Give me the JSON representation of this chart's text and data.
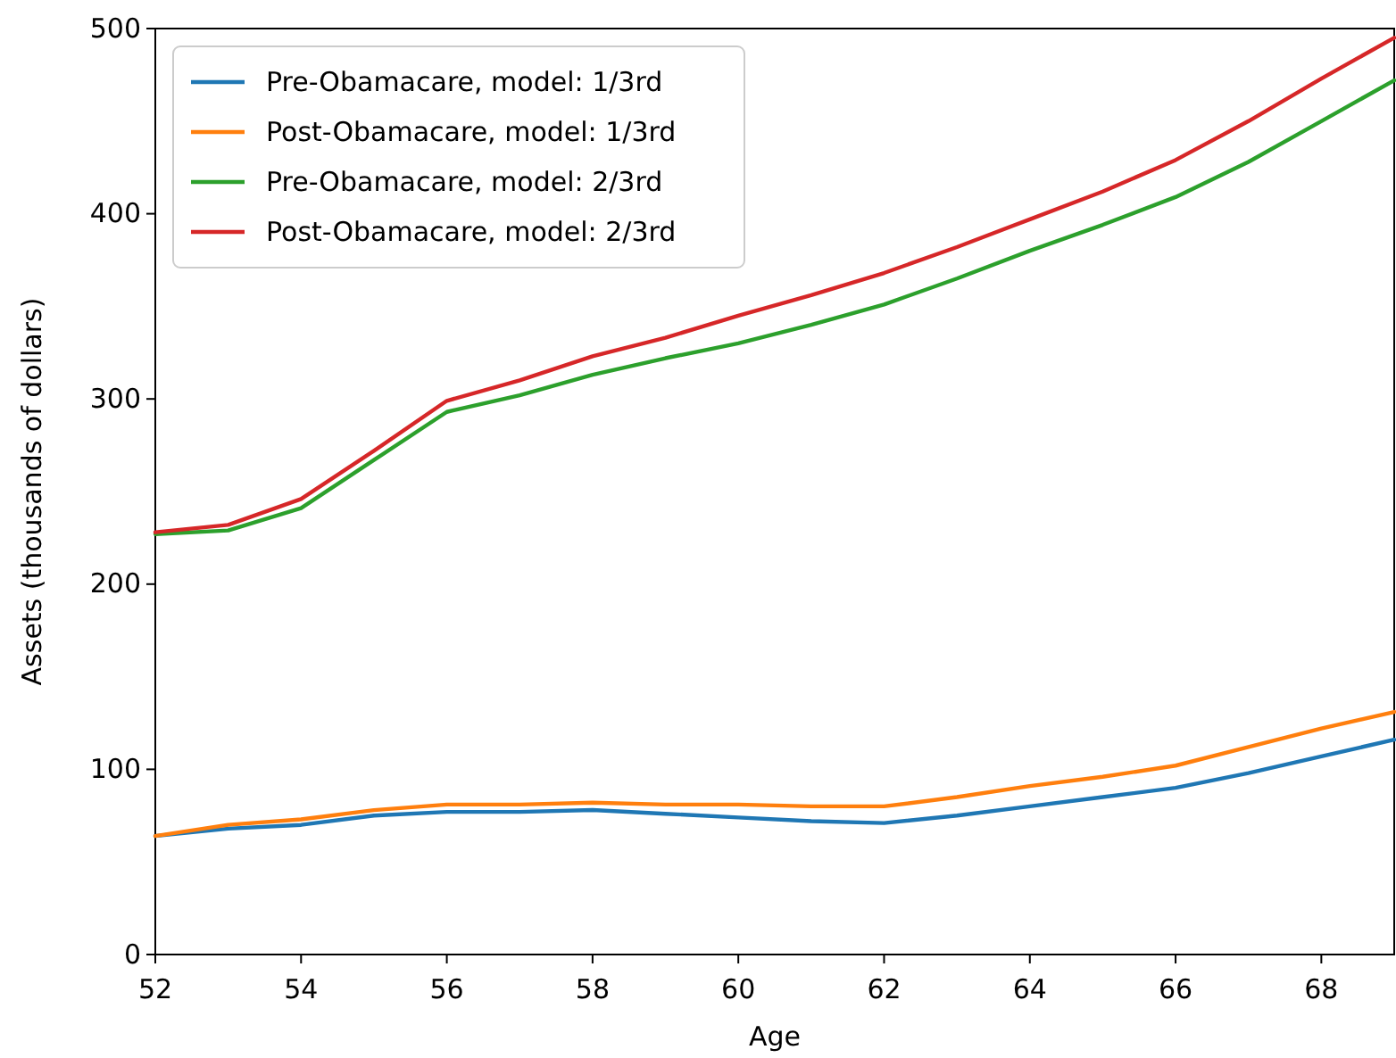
{
  "chart_data": {
    "type": "line",
    "xlabel": "Age",
    "ylabel": "Assets (thousands of dollars)",
    "x": [
      52,
      53,
      54,
      55,
      56,
      57,
      58,
      59,
      60,
      61,
      62,
      63,
      64,
      65,
      66,
      67,
      68,
      69
    ],
    "series": [
      {
        "name": "Pre-Obamacare, model: 1/3rd",
        "color": "#1f77b4",
        "values": [
          64,
          68,
          70,
          75,
          77,
          77,
          78,
          76,
          74,
          72,
          71,
          75,
          80,
          85,
          90,
          98,
          107,
          116
        ]
      },
      {
        "name": "Post-Obamacare, model: 1/3rd",
        "color": "#ff7f0e",
        "values": [
          64,
          70,
          73,
          78,
          81,
          81,
          82,
          81,
          81,
          80,
          80,
          85,
          91,
          96,
          102,
          112,
          122,
          131
        ]
      },
      {
        "name": "Pre-Obamacare, model: 2/3rd",
        "color": "#2ca02c",
        "values": [
          227,
          229,
          241,
          267,
          293,
          302,
          313,
          322,
          330,
          340,
          351,
          365,
          380,
          394,
          409,
          428,
          450,
          472
        ]
      },
      {
        "name": "Post-Obamacare, model: 2/3rd",
        "color": "#d62728",
        "values": [
          228,
          232,
          246,
          272,
          299,
          310,
          323,
          333,
          345,
          356,
          368,
          382,
          397,
          412,
          429,
          450,
          473,
          495
        ]
      }
    ],
    "xlim": [
      52,
      69
    ],
    "xticks": [
      52,
      54,
      56,
      58,
      60,
      62,
      64,
      66,
      68
    ],
    "ylim": [
      0,
      500
    ],
    "yticks": [
      0,
      100,
      200,
      300,
      400,
      500
    ],
    "grid": false,
    "legend": "top left"
  }
}
